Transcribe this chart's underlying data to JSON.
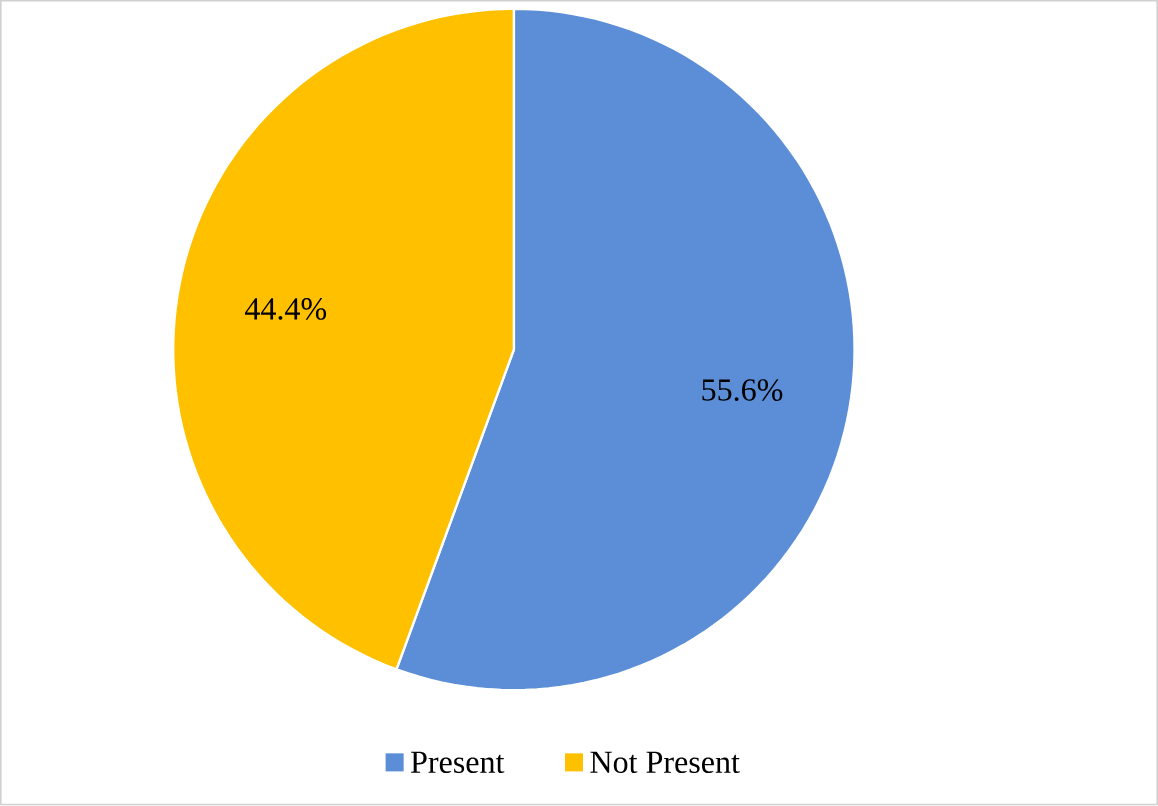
{
  "chart_data": {
    "type": "pie",
    "categories": [
      "Present",
      "Not Present"
    ],
    "values": [
      55.6,
      44.4
    ],
    "colors": [
      "#5b8ed6",
      "#ffc000"
    ],
    "value_labels": [
      "55.6%",
      "44.4%"
    ],
    "legend": "bottom"
  }
}
